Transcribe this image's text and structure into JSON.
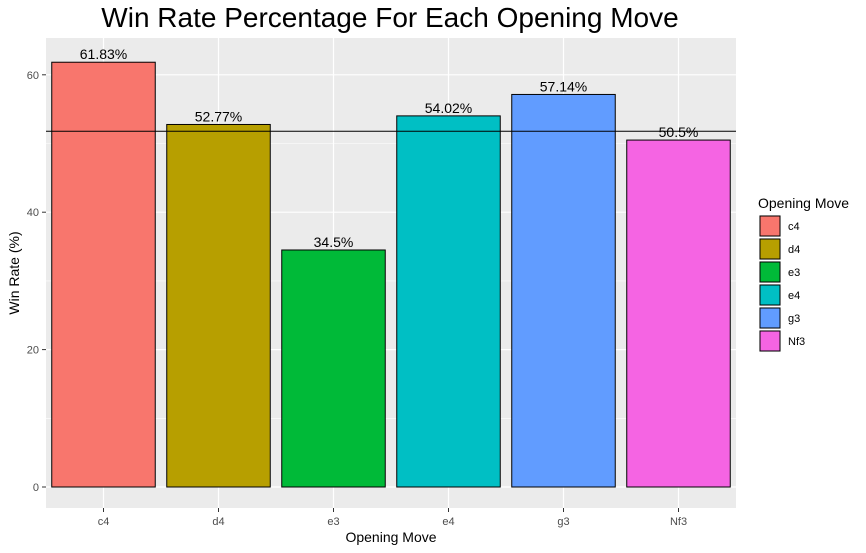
{
  "chart_data": {
    "type": "bar",
    "title": "Win Rate Percentage For Each Opening Move",
    "xlabel": "Opening Move",
    "ylabel": "Win Rate (%)",
    "categories": [
      "c4",
      "d4",
      "e3",
      "e4",
      "g3",
      "Nf3"
    ],
    "values": [
      61.83,
      52.77,
      34.5,
      54.02,
      57.14,
      50.5
    ],
    "data_labels": [
      "61.83%",
      "52.77%",
      "34.5%",
      "54.02%",
      "57.14%",
      "50.5%"
    ],
    "colors": [
      "#F8766D",
      "#B79F00",
      "#00BA38",
      "#00BFC4",
      "#619CFF",
      "#F564E3"
    ],
    "ylim": [
      0,
      65
    ],
    "yticks": [
      0,
      20,
      40,
      60
    ],
    "reference_line": 51.79,
    "grid": true,
    "legend": {
      "title": "Opening Move",
      "position": "right",
      "entries": [
        "c4",
        "d4",
        "e3",
        "e4",
        "g3",
        "Nf3"
      ]
    },
    "panel_background": "#EBEBEB"
  }
}
